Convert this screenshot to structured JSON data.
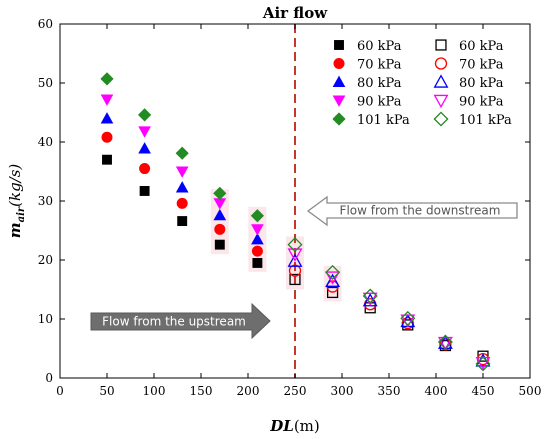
{
  "chart_data": {
    "type": "scatter",
    "title": "Air flow",
    "xlabel_main": "DL",
    "xlabel_unit": "(m)",
    "ylabel_main": "m",
    "ylabel_sub": "air",
    "ylabel_unit": "(kg/s)",
    "xlim": [
      0,
      500
    ],
    "ylim": [
      0,
      60
    ],
    "x_ticks": [
      0,
      50,
      100,
      150,
      200,
      250,
      300,
      350,
      400,
      450,
      500
    ],
    "y_ticks": [
      0,
      10,
      20,
      30,
      40,
      50,
      60
    ],
    "grid": false,
    "legend_position": "top-right",
    "vline_x": 250,
    "vline_color": "#c0392b",
    "annotations": {
      "downstream": "Flow from the downstream",
      "upstream": "Flow from the upstream"
    },
    "series": [
      {
        "name": "60 kPa",
        "marker": "square",
        "filled": true,
        "color": "#000000",
        "x": [
          50,
          90,
          130,
          170,
          210
        ],
        "y": [
          37.0,
          31.7,
          26.6,
          22.6,
          19.5
        ]
      },
      {
        "name": "70 kPa",
        "marker": "circle",
        "filled": true,
        "color": "#ff0000",
        "x": [
          50,
          90,
          130,
          170,
          210
        ],
        "y": [
          40.8,
          35.5,
          29.6,
          25.2,
          21.5
        ]
      },
      {
        "name": "80 kPa",
        "marker": "triangle-up",
        "filled": true,
        "color": "#0000ff",
        "x": [
          50,
          90,
          130,
          170,
          210
        ],
        "y": [
          44.0,
          38.9,
          32.3,
          27.6,
          23.5
        ]
      },
      {
        "name": "90 kPa",
        "marker": "triangle-down",
        "filled": true,
        "color": "#ff00ff",
        "x": [
          50,
          90,
          130,
          170,
          210
        ],
        "y": [
          47.2,
          41.8,
          35.0,
          29.6,
          25.2
        ]
      },
      {
        "name": "101 kPa",
        "marker": "diamond",
        "filled": true,
        "color": "#228b22",
        "x": [
          50,
          90,
          130,
          170,
          210
        ],
        "y": [
          50.7,
          44.6,
          38.1,
          31.3,
          27.5
        ]
      },
      {
        "name": "60 kPa",
        "marker": "square",
        "filled": false,
        "color": "#000000",
        "x": [
          250,
          290,
          330,
          370,
          410,
          450
        ],
        "y": [
          16.7,
          14.5,
          11.9,
          9.0,
          5.5,
          3.7
        ]
      },
      {
        "name": "70 kPa",
        "marker": "circle",
        "filled": false,
        "color": "#ff0000",
        "x": [
          250,
          290,
          330,
          370,
          410,
          450
        ],
        "y": [
          18.2,
          15.5,
          12.5,
          9.3,
          5.7,
          3.2
        ]
      },
      {
        "name": "80 kPa",
        "marker": "triangle-up",
        "filled": false,
        "color": "#0000ff",
        "x": [
          250,
          290,
          330,
          370,
          410,
          450
        ],
        "y": [
          19.8,
          16.4,
          13.1,
          9.6,
          5.9,
          2.9
        ]
      },
      {
        "name": "90 kPa",
        "marker": "triangle-down",
        "filled": false,
        "color": "#ff00ff",
        "x": [
          250,
          290,
          330,
          370,
          410,
          450
        ],
        "y": [
          21.0,
          17.1,
          13.5,
          9.8,
          6.0,
          2.6
        ]
      },
      {
        "name": "101 kPa",
        "marker": "diamond",
        "filled": false,
        "color": "#228b22",
        "x": [
          250,
          290,
          330,
          370,
          410,
          450
        ],
        "y": [
          22.6,
          17.9,
          13.9,
          10.1,
          6.1,
          2.4
        ]
      }
    ]
  }
}
